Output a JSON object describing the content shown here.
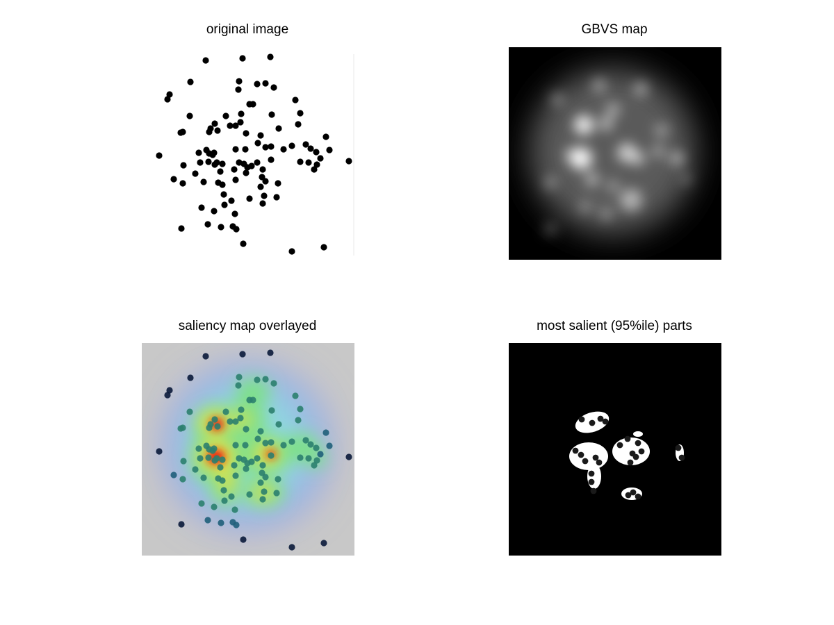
{
  "figure": {
    "panels": [
      {
        "id": "original",
        "title": "original image"
      },
      {
        "id": "gbvs",
        "title": "GBVS map"
      },
      {
        "id": "overlay",
        "title": "saliency map overlayed"
      },
      {
        "id": "salient",
        "title": "most salient (95%ile) parts"
      }
    ]
  },
  "colors": {
    "background": "#ffffff",
    "dot": "#000000",
    "map_background": "#000000",
    "overlay_background": "#c8c8c8"
  }
}
